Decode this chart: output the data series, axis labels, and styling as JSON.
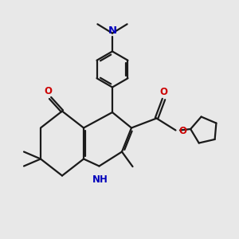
{
  "bg_color": "#e8e8e8",
  "bond_color": "#1a1a1a",
  "N_color": "#0000bb",
  "O_color": "#cc0000",
  "lw": 1.6,
  "fs": 8.5,
  "xlim": [
    -1.5,
    8.5
  ],
  "ylim": [
    -1.0,
    8.0
  ]
}
